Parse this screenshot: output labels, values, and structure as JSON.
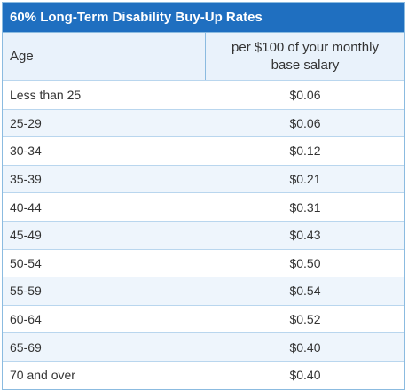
{
  "table": {
    "title": "60% Long-Term Disability Buy-Up Rates",
    "headers": {
      "age": "Age",
      "rate": "per $100 of your monthly base salary"
    },
    "rows": [
      {
        "age": "Less than 25",
        "rate": "$0.06"
      },
      {
        "age": "25-29",
        "rate": "$0.06"
      },
      {
        "age": "30-34",
        "rate": "$0.12"
      },
      {
        "age": "35-39",
        "rate": "$0.21"
      },
      {
        "age": "40-44",
        "rate": "$0.31"
      },
      {
        "age": "45-49",
        "rate": "$0.43"
      },
      {
        "age": "50-54",
        "rate": "$0.50"
      },
      {
        "age": "55-59",
        "rate": "$0.54"
      },
      {
        "age": "60-64",
        "rate": "$0.52"
      },
      {
        "age": "65-69",
        "rate": "$0.40"
      },
      {
        "age": "70 and over",
        "rate": "$0.40"
      }
    ]
  },
  "colors": {
    "title_bar": "#1f6fc0",
    "header_bg": "#e9f2fb",
    "stripe_bg": "#eef5fc",
    "border": "#8bbbe0"
  }
}
